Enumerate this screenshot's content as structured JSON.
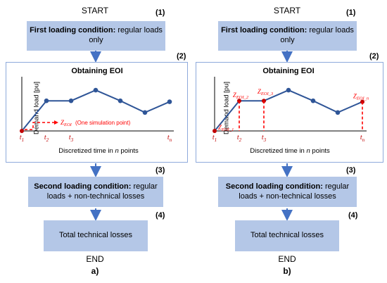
{
  "panels": [
    {
      "id": "a",
      "start": "START",
      "end": "END",
      "sublabel": "a)",
      "steps": {
        "n1": "(1)",
        "n2": "(2)",
        "n3": "(3)",
        "n4": "(4)"
      },
      "box1": {
        "bold": "First loading condition:",
        "text": " regular loads only"
      },
      "chart_title": "Obtaining EOI",
      "y_axis": "Demand load [pu]",
      "x_axis_prefix": "Discretized time in ",
      "x_axis_italic": "n",
      "x_axis_suffix": " points",
      "ticks": [
        "t1",
        "t2",
        "t3",
        "tn"
      ],
      "annotation": "(One simulation point)",
      "box3": {
        "bold": "Second loading condition:",
        "text": " regular loads + non-technical losses"
      },
      "box4": "Total technical losses"
    },
    {
      "id": "b",
      "start": "START",
      "end": "END",
      "sublabel": "b)",
      "steps": {
        "n1": "(1)",
        "n2": "(2)",
        "n3": "(3)",
        "n4": "(4)"
      },
      "box1": {
        "bold": "First loading condition:",
        "text": " regular loads only"
      },
      "chart_title": "Obtaining EOI",
      "y_axis": "Demand load [pu]",
      "x_axis_prefix": "Discretized time in ",
      "x_axis_italic": "n",
      "x_axis_suffix": " points",
      "ticks": [
        "t1",
        "t2",
        "t3",
        "tn"
      ],
      "box3": {
        "bold": "Second loading condition:",
        "text": " regular loads + non-technical losses"
      },
      "box4": "Total technical losses"
    }
  ],
  "colors": {
    "box_fill": "#b4c7e7",
    "frame_border": "#8eaadb",
    "arrow": "#4472c4",
    "line": "#2f5597",
    "marker": "#c00000",
    "annotation": "#ff0000"
  },
  "chart_data": [
    {
      "type": "line",
      "series": [
        {
          "values": [
            0,
            0.62,
            0.62,
            0.84,
            0.62,
            0.38,
            0.6
          ]
        }
      ],
      "highlighted_points": [
        0
      ]
    },
    {
      "type": "line",
      "series": [
        {
          "values": [
            0,
            0.62,
            0.62,
            0.84,
            0.62,
            0.38,
            0.6
          ]
        }
      ],
      "highlighted_points": [
        0,
        1,
        2,
        6
      ]
    }
  ]
}
